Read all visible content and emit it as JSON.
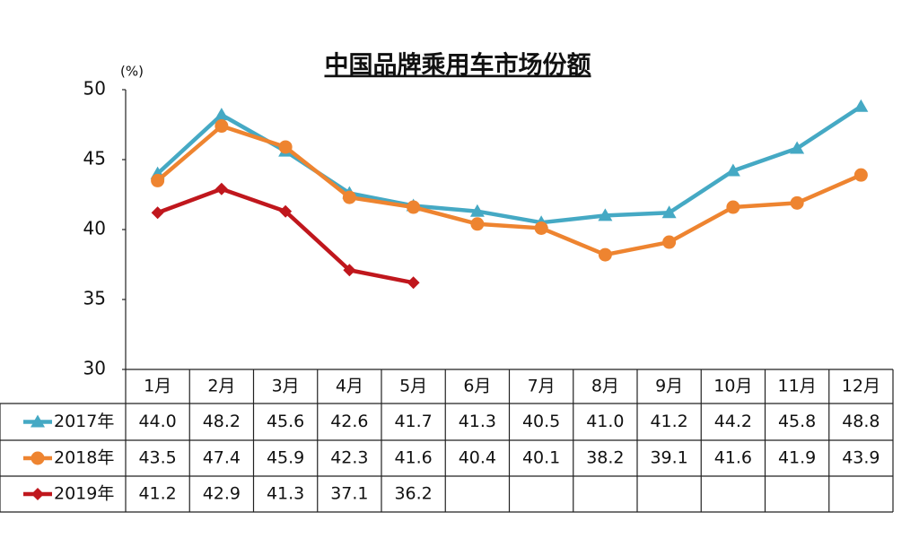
{
  "chart_data": {
    "type": "line",
    "title": "中国品牌乘用车市场份额",
    "y_label": "(%)",
    "categories": [
      "1月",
      "2月",
      "3月",
      "4月",
      "5月",
      "6月",
      "7月",
      "8月",
      "9月",
      "10月",
      "11月",
      "12月"
    ],
    "series": [
      {
        "name": "2017年",
        "color": "#45a9c4",
        "marker": "triangle",
        "values": [
          44.0,
          48.2,
          45.6,
          42.6,
          41.7,
          41.3,
          40.5,
          41.0,
          41.2,
          44.2,
          45.8,
          48.8
        ],
        "value_labels": [
          "44.0",
          "48.2",
          "45.6",
          "42.6",
          "41.7",
          "41.3",
          "40.5",
          "41.0",
          "41.2",
          "44.2",
          "45.8",
          "48.8"
        ]
      },
      {
        "name": "2018年",
        "color": "#ee8430",
        "marker": "circle",
        "values": [
          43.5,
          47.4,
          45.9,
          42.3,
          41.6,
          40.4,
          40.1,
          38.2,
          39.1,
          41.6,
          41.9,
          43.9
        ],
        "value_labels": [
          "43.5",
          "47.4",
          "45.9",
          "42.3",
          "41.6",
          "40.4",
          "40.1",
          "38.2",
          "39.1",
          "41.6",
          "41.9",
          "43.9"
        ]
      },
      {
        "name": "2019年",
        "color": "#c0171d",
        "marker": "diamond",
        "values": [
          41.2,
          42.9,
          41.3,
          37.1,
          36.2,
          null,
          null,
          null,
          null,
          null,
          null,
          null
        ],
        "value_labels": [
          "41.2",
          "42.9",
          "41.3",
          "37.1",
          "36.2",
          null,
          null,
          null,
          null,
          null,
          null,
          null
        ]
      }
    ],
    "ylim": [
      30,
      50
    ],
    "yticks": [
      30,
      35,
      40,
      45,
      50
    ],
    "grid": false
  }
}
